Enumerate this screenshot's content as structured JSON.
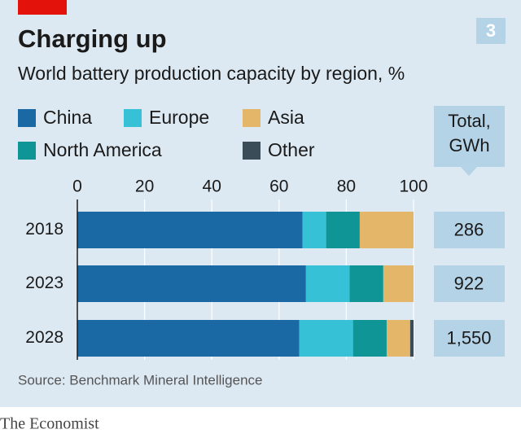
{
  "chart_data": {
    "type": "stacked-bar-horizontal",
    "title": "Charging up",
    "subtitle": "World battery production capacity by region, %",
    "chart_number": "3",
    "source": "Source: Benchmark Mineral Intelligence",
    "publisher": "The Economist",
    "categories": [
      "2018",
      "2023",
      "2028"
    ],
    "series": [
      {
        "name": "China",
        "color": "#1b69a4",
        "values": [
          67,
          68,
          66
        ]
      },
      {
        "name": "Europe",
        "color": "#36c1d6",
        "values": [
          7,
          13,
          16
        ]
      },
      {
        "name": "North America",
        "color": "#0f9596",
        "values": [
          10,
          10,
          10
        ]
      },
      {
        "name": "Asia",
        "color": "#e4b66a",
        "values": [
          16,
          9,
          7
        ]
      },
      {
        "name": "Other",
        "color": "#394c57",
        "values": [
          0,
          0,
          1
        ]
      }
    ],
    "xlim": [
      0,
      100
    ],
    "xticks": [
      0,
      20,
      40,
      60,
      80,
      100
    ],
    "grid": true,
    "totals": {
      "title": "Total, GWh",
      "values": [
        286,
        922,
        1550
      ],
      "value_labels": [
        "286",
        "922",
        "1,550"
      ]
    }
  }
}
